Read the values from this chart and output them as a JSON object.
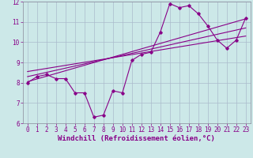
{
  "xlabel": "Windchill (Refroidissement éolien,°C)",
  "xlim": [
    -0.5,
    23.5
  ],
  "ylim": [
    6,
    12
  ],
  "xticks": [
    0,
    1,
    2,
    3,
    4,
    5,
    6,
    7,
    8,
    9,
    10,
    11,
    12,
    13,
    14,
    15,
    16,
    17,
    18,
    19,
    20,
    21,
    22,
    23
  ],
  "yticks": [
    6,
    7,
    8,
    9,
    10,
    11,
    12
  ],
  "bg_color": "#cce8e8",
  "line_color": "#880088",
  "grid_color": "#aabbcc",
  "hours": [
    0,
    1,
    2,
    3,
    4,
    5,
    6,
    7,
    8,
    9,
    10,
    11,
    12,
    13,
    14,
    15,
    16,
    17,
    18,
    19,
    20,
    21,
    22,
    23
  ],
  "windchill": [
    8.0,
    8.3,
    8.4,
    8.2,
    8.2,
    7.5,
    7.5,
    6.3,
    6.4,
    7.6,
    7.5,
    9.1,
    9.4,
    9.5,
    10.5,
    11.9,
    11.7,
    11.8,
    11.4,
    10.8,
    10.1,
    9.7,
    10.1,
    11.2
  ],
  "trend1_x": [
    0,
    23
  ],
  "trend1_y": [
    8.05,
    11.15
  ],
  "trend2_x": [
    0,
    23
  ],
  "trend2_y": [
    8.3,
    10.7
  ],
  "trend3_x": [
    0,
    23
  ],
  "trend3_y": [
    8.55,
    10.3
  ],
  "tick_fontsize": 5.5,
  "xlabel_fontsize": 6.5
}
